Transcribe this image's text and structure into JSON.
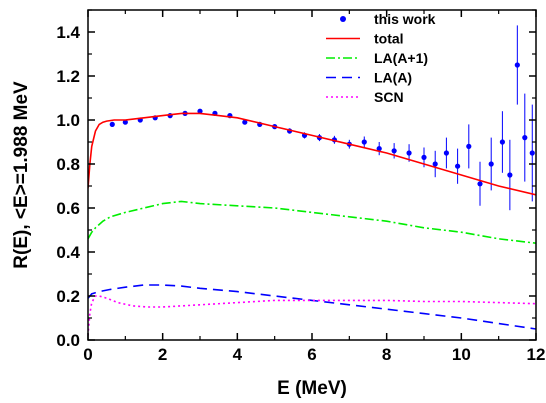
{
  "chart_data": {
    "type": "line",
    "xlabel": "E (MeV)",
    "ylabel": "R(E), <E>=1.988 MeV",
    "xlim": [
      0,
      12
    ],
    "ylim": [
      0.0,
      1.5
    ],
    "xticks": [
      "0",
      "2",
      "4",
      "6",
      "8",
      "10",
      "12"
    ],
    "yticks": [
      "0.0",
      "0.2",
      "0.4",
      "0.6",
      "0.8",
      "1.0",
      "1.2",
      "1.4"
    ],
    "legend_position": "top-right",
    "series": [
      {
        "name": "this work",
        "kind": "scatter-errorbars",
        "color": "#0000ff",
        "x": [
          0.65,
          1.0,
          1.4,
          1.8,
          2.2,
          2.6,
          3.0,
          3.4,
          3.8,
          4.2,
          4.6,
          5.0,
          5.4,
          5.8,
          6.2,
          6.6,
          7.0,
          7.4,
          7.8,
          8.2,
          8.6,
          9.0,
          9.3,
          9.6,
          9.9,
          10.2,
          10.5,
          10.8,
          11.1,
          11.3,
          11.5,
          11.7,
          11.9
        ],
        "y": [
          0.98,
          0.99,
          1.0,
          1.01,
          1.02,
          1.03,
          1.04,
          1.03,
          1.02,
          0.99,
          0.98,
          0.97,
          0.95,
          0.93,
          0.92,
          0.91,
          0.89,
          0.9,
          0.87,
          0.86,
          0.85,
          0.83,
          0.8,
          0.85,
          0.79,
          0.88,
          0.71,
          0.8,
          0.9,
          0.75,
          1.25,
          0.92,
          0.85
        ],
        "err": [
          0.01,
          0.01,
          0.01,
          0.01,
          0.01,
          0.01,
          0.01,
          0.01,
          0.01,
          0.01,
          0.01,
          0.01,
          0.012,
          0.014,
          0.016,
          0.018,
          0.02,
          0.025,
          0.03,
          0.035,
          0.04,
          0.045,
          0.06,
          0.07,
          0.08,
          0.1,
          0.1,
          0.12,
          0.14,
          0.16,
          0.18,
          0.2,
          0.22
        ]
      },
      {
        "name": "total",
        "kind": "line",
        "color": "#ff0000",
        "dash": "",
        "x": [
          0.0,
          0.05,
          0.1,
          0.2,
          0.3,
          0.4,
          0.5,
          0.7,
          1.0,
          1.5,
          2.0,
          2.5,
          3.0,
          3.5,
          4.0,
          5.0,
          6.0,
          7.0,
          8.0,
          9.0,
          10.0,
          11.0,
          12.0
        ],
        "y": [
          0.69,
          0.8,
          0.88,
          0.95,
          0.98,
          0.99,
          0.995,
          1.0,
          1.0,
          1.01,
          1.02,
          1.03,
          1.03,
          1.02,
          1.01,
          0.97,
          0.93,
          0.89,
          0.85,
          0.8,
          0.75,
          0.7,
          0.66
        ]
      },
      {
        "name": "LA(A+1)",
        "kind": "line",
        "color": "#00ee00",
        "dash": "9,3,2,3",
        "x": [
          0.0,
          0.1,
          0.2,
          0.4,
          0.6,
          1.0,
          1.5,
          2.0,
          2.5,
          3.0,
          4.0,
          5.0,
          6.0,
          7.0,
          8.0,
          9.0,
          10.0,
          11.0,
          12.0
        ],
        "y": [
          0.46,
          0.49,
          0.51,
          0.54,
          0.56,
          0.58,
          0.6,
          0.62,
          0.63,
          0.62,
          0.61,
          0.6,
          0.58,
          0.56,
          0.54,
          0.51,
          0.49,
          0.46,
          0.44
        ]
      },
      {
        "name": "LA(A)",
        "kind": "line",
        "color": "#0000ff",
        "dash": "10,6",
        "x": [
          0.0,
          0.1,
          0.3,
          0.6,
          1.0,
          1.5,
          2.0,
          2.5,
          3.0,
          4.0,
          5.0,
          6.0,
          7.0,
          8.0,
          9.0,
          10.0,
          11.0,
          12.0
        ],
        "y": [
          0.19,
          0.21,
          0.22,
          0.23,
          0.24,
          0.25,
          0.25,
          0.245,
          0.235,
          0.22,
          0.2,
          0.18,
          0.16,
          0.14,
          0.12,
          0.1,
          0.075,
          0.05
        ]
      },
      {
        "name": "SCN",
        "kind": "line",
        "color": "#ff00ff",
        "dash": "2,3",
        "x": [
          0.0,
          0.05,
          0.1,
          0.2,
          0.3,
          0.5,
          0.8,
          1.2,
          1.6,
          2.0,
          2.5,
          3.0,
          4.0,
          5.0,
          6.0,
          7.0,
          8.0,
          9.0,
          10.0,
          11.0,
          12.0
        ],
        "y": [
          0.02,
          0.12,
          0.17,
          0.2,
          0.2,
          0.19,
          0.17,
          0.155,
          0.15,
          0.15,
          0.155,
          0.16,
          0.17,
          0.18,
          0.18,
          0.18,
          0.18,
          0.175,
          0.175,
          0.17,
          0.165
        ]
      }
    ]
  }
}
